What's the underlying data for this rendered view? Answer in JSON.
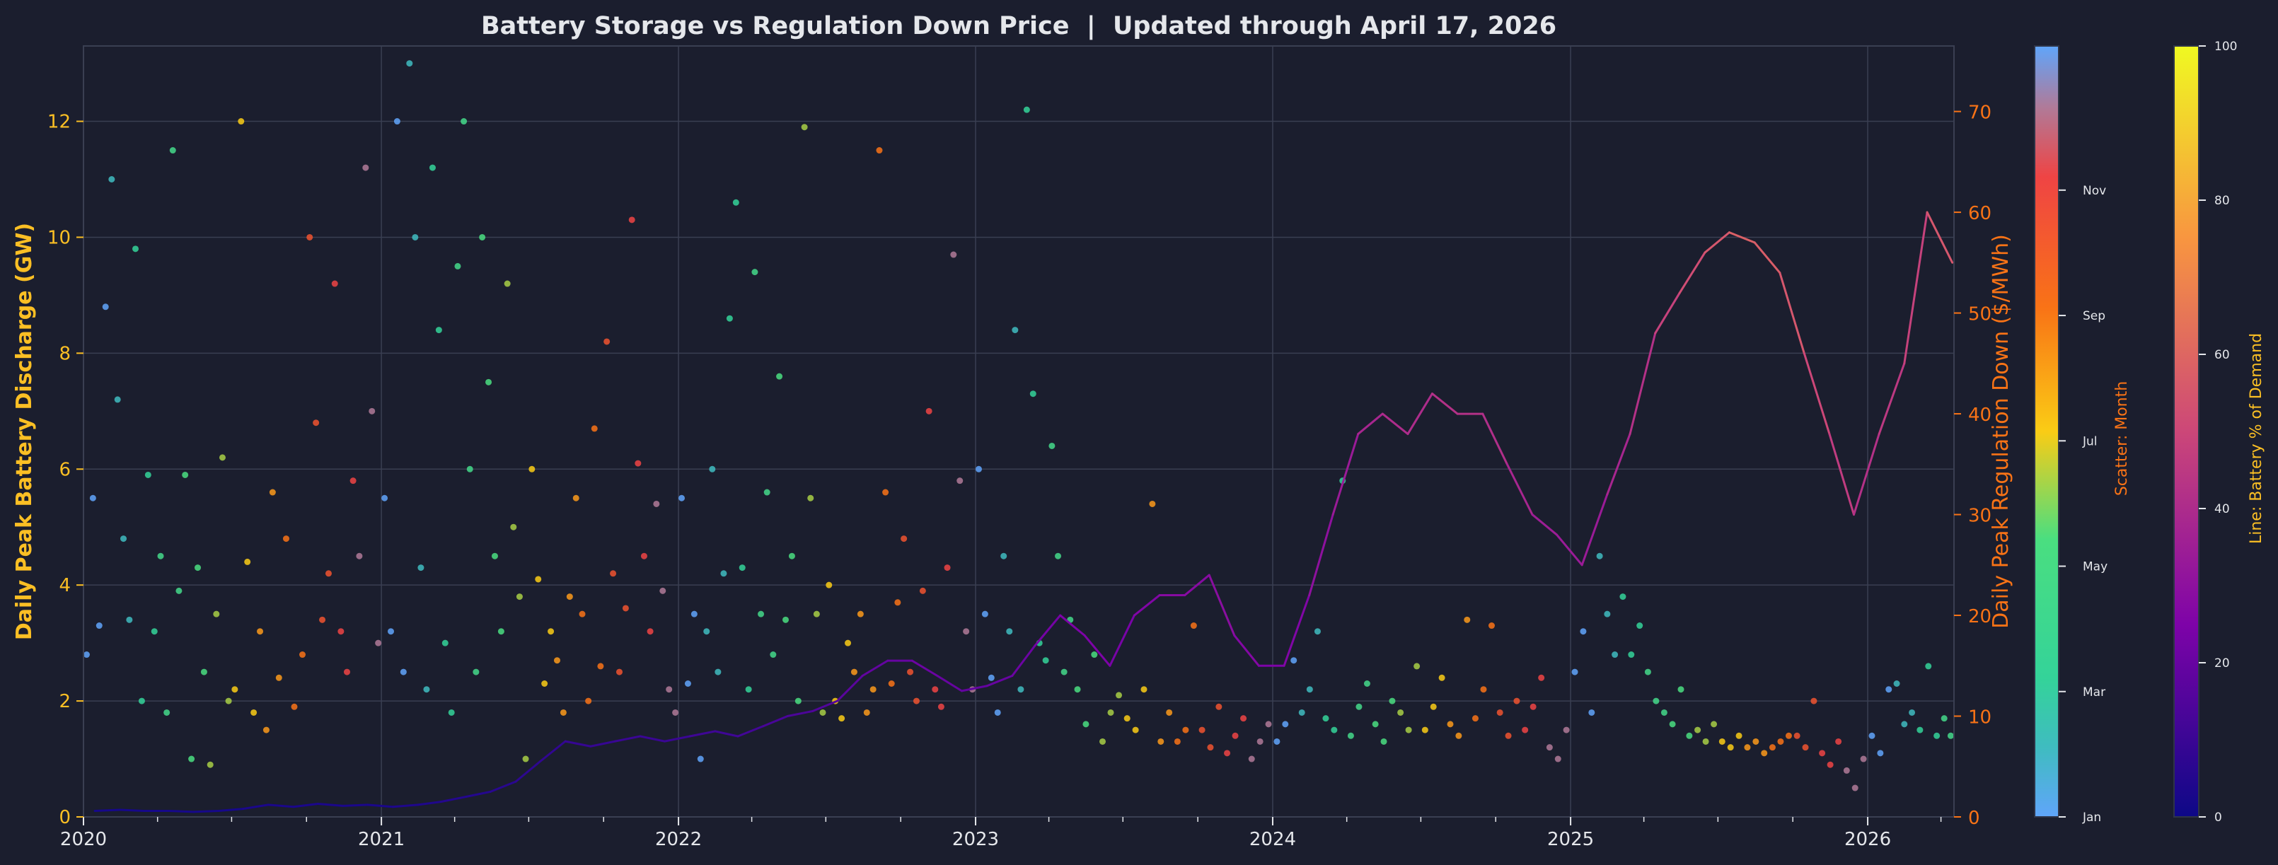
{
  "chart_data": {
    "type": "scatter+line",
    "title": "Battery Storage vs Regulation Down Price  |  Updated through April 17, 2026",
    "xlabel": "",
    "ylabel_left": "Daily Peak Battery Discharge (GW)",
    "ylabel_right": "Daily Peak Regulation Down ($/MWh)",
    "xlim": [
      "2020-01-01",
      "2026-04-17"
    ],
    "ylim_left": [
      0,
      13.3
    ],
    "ylim_right": [
      0,
      76.5
    ],
    "x_ticks": [
      "2020",
      "2021",
      "2022",
      "2023",
      "2024",
      "2025",
      "2026"
    ],
    "y_ticks_left": [
      0,
      2,
      4,
      6,
      8,
      10,
      12
    ],
    "y_ticks_right": [
      0,
      10,
      20,
      30,
      40,
      50,
      60,
      70
    ],
    "grid": true,
    "colors": {
      "background": "#1b1e2e",
      "title": "#e5e7eb",
      "left_axis": "#fbbf24",
      "right_axis": "#f97316",
      "grid": "#3a3f52"
    },
    "scatter_colorbar": {
      "label": "Scatter: Month",
      "ticks": [
        "Jan",
        "Mar",
        "May",
        "Jul",
        "Sep",
        "Nov"
      ],
      "month_colors": [
        "#60a5fa",
        "#3fbcc0",
        "#34d399",
        "#44d98a",
        "#4ade80",
        "#a8cf45",
        "#facc15",
        "#fb9a1a",
        "#f97316",
        "#f0542f",
        "#ef4444",
        "#b07a98"
      ]
    },
    "line_colorbar": {
      "label": "Line: Battery % of Demand",
      "ticks": [
        0,
        20,
        40,
        60,
        80,
        100
      ],
      "colormap": "plasma"
    },
    "scatter": [
      {
        "m": "2020-01",
        "v": [
          2.8,
          5.5,
          3.3,
          8.8
        ]
      },
      {
        "m": "2020-02",
        "v": [
          11.0,
          7.2,
          4.8,
          3.4
        ]
      },
      {
        "m": "2020-03",
        "v": [
          9.8,
          2.0,
          5.9,
          3.2
        ]
      },
      {
        "m": "2020-04",
        "v": [
          4.5,
          1.8,
          11.5,
          3.9
        ]
      },
      {
        "m": "2020-05",
        "v": [
          5.9,
          1.0,
          4.3,
          2.5
        ]
      },
      {
        "m": "2020-06",
        "v": [
          0.9,
          3.5,
          6.2,
          2.0
        ]
      },
      {
        "m": "2020-07",
        "v": [
          2.2,
          12.0,
          4.4,
          1.8
        ]
      },
      {
        "m": "2020-08",
        "v": [
          3.2,
          1.5,
          5.6,
          2.4
        ]
      },
      {
        "m": "2020-09",
        "v": [
          4.8,
          1.9,
          2.8
        ]
      },
      {
        "m": "2020-10",
        "v": [
          10.0,
          6.8,
          3.4,
          4.2
        ]
      },
      {
        "m": "2020-11",
        "v": [
          9.2,
          3.2,
          2.5,
          5.8
        ]
      },
      {
        "m": "2020-12",
        "v": [
          4.5,
          11.2,
          7.0,
          3.0
        ]
      },
      {
        "m": "2021-01",
        "v": [
          5.5,
          3.2,
          12.0,
          2.5
        ]
      },
      {
        "m": "2021-02",
        "v": [
          13.0,
          10.0,
          4.3,
          2.2
        ]
      },
      {
        "m": "2021-03",
        "v": [
          11.2,
          8.4,
          3.0,
          1.8
        ]
      },
      {
        "m": "2021-04",
        "v": [
          9.5,
          12.0,
          6.0,
          2.5
        ]
      },
      {
        "m": "2021-05",
        "v": [
          10.0,
          7.5,
          4.5,
          3.2
        ]
      },
      {
        "m": "2021-06",
        "v": [
          9.2,
          5.0,
          3.8,
          1.0
        ]
      },
      {
        "m": "2021-07",
        "v": [
          6.0,
          4.1,
          2.3,
          3.2
        ]
      },
      {
        "m": "2021-08",
        "v": [
          2.7,
          1.8,
          3.8,
          5.5
        ]
      },
      {
        "m": "2021-09",
        "v": [
          3.5,
          2.0,
          6.7,
          2.6
        ]
      },
      {
        "m": "2021-10",
        "v": [
          8.2,
          4.2,
          2.5,
          3.6
        ]
      },
      {
        "m": "2021-11",
        "v": [
          10.3,
          6.1,
          4.5,
          3.2
        ]
      },
      {
        "m": "2021-12",
        "v": [
          5.4,
          3.9,
          2.2,
          1.8
        ]
      },
      {
        "m": "2022-01",
        "v": [
          5.5,
          2.3,
          3.5,
          1.0
        ]
      },
      {
        "m": "2022-02",
        "v": [
          3.2,
          6.0,
          2.5,
          4.2
        ]
      },
      {
        "m": "2022-03",
        "v": [
          8.6,
          10.6,
          4.3,
          2.2
        ]
      },
      {
        "m": "2022-04",
        "v": [
          9.4,
          3.5,
          5.6,
          2.8
        ]
      },
      {
        "m": "2022-05",
        "v": [
          7.6,
          3.4,
          4.5,
          2.0
        ]
      },
      {
        "m": "2022-06",
        "v": [
          11.9,
          5.5,
          3.5,
          1.8
        ]
      },
      {
        "m": "2022-07",
        "v": [
          4.0,
          2.0,
          1.7,
          3.0
        ]
      },
      {
        "m": "2022-08",
        "v": [
          2.5,
          3.5,
          1.8,
          2.2
        ]
      },
      {
        "m": "2022-09",
        "v": [
          11.5,
          5.6,
          2.3,
          3.7
        ]
      },
      {
        "m": "2022-10",
        "v": [
          4.8,
          2.5,
          2.0,
          3.9
        ]
      },
      {
        "m": "2022-11",
        "v": [
          7.0,
          2.2,
          1.9,
          4.3
        ]
      },
      {
        "m": "2022-12",
        "v": [
          9.7,
          5.8,
          3.2,
          2.2
        ]
      },
      {
        "m": "2023-01",
        "v": [
          6.0,
          3.5,
          2.4,
          1.8
        ]
      },
      {
        "m": "2023-02",
        "v": [
          4.5,
          3.2,
          8.4,
          2.2
        ]
      },
      {
        "m": "2023-03",
        "v": [
          12.2,
          7.3,
          3.0,
          2.7
        ]
      },
      {
        "m": "2023-04",
        "v": [
          6.4,
          4.5,
          2.5,
          3.4
        ]
      },
      {
        "m": "2023-05",
        "v": [
          2.2,
          1.6,
          2.8
        ]
      },
      {
        "m": "2023-06",
        "v": [
          1.3,
          1.8,
          2.1
        ]
      },
      {
        "m": "2023-07",
        "v": [
          1.7,
          1.5,
          2.2
        ]
      },
      {
        "m": "2023-08",
        "v": [
          5.4,
          1.3,
          1.8
        ]
      },
      {
        "m": "2023-09",
        "v": [
          1.3,
          1.5,
          3.3
        ]
      },
      {
        "m": "2023-10",
        "v": [
          1.5,
          1.2,
          1.9
        ]
      },
      {
        "m": "2023-11",
        "v": [
          1.1,
          1.4,
          1.7
        ]
      },
      {
        "m": "2023-12",
        "v": [
          1.0,
          1.3,
          1.6
        ]
      },
      {
        "m": "2024-01",
        "v": [
          1.3,
          1.6,
          2.7
        ]
      },
      {
        "m": "2024-02",
        "v": [
          1.8,
          2.2,
          3.2
        ]
      },
      {
        "m": "2024-03",
        "v": [
          1.7,
          1.5,
          5.8
        ]
      },
      {
        "m": "2024-04",
        "v": [
          1.4,
          1.9,
          2.3
        ]
      },
      {
        "m": "2024-05",
        "v": [
          1.6,
          1.3,
          2.0
        ]
      },
      {
        "m": "2024-06",
        "v": [
          1.8,
          1.5,
          2.6
        ]
      },
      {
        "m": "2024-07",
        "v": [
          1.5,
          1.9,
          2.4
        ]
      },
      {
        "m": "2024-08",
        "v": [
          1.6,
          1.4,
          3.4
        ]
      },
      {
        "m": "2024-09",
        "v": [
          1.7,
          2.2,
          3.3
        ]
      },
      {
        "m": "2024-10",
        "v": [
          1.8,
          1.4,
          2.0
        ]
      },
      {
        "m": "2024-11",
        "v": [
          1.5,
          1.9,
          2.4
        ]
      },
      {
        "m": "2024-12",
        "v": [
          1.2,
          1.0,
          1.5
        ]
      },
      {
        "m": "2025-01",
        "v": [
          2.5,
          3.2,
          1.8
        ]
      },
      {
        "m": "2025-02",
        "v": [
          4.5,
          3.5,
          2.8
        ]
      },
      {
        "m": "2025-03",
        "v": [
          3.8,
          2.8,
          3.3
        ]
      },
      {
        "m": "2025-04",
        "v": [
          2.5,
          2.0,
          1.8
        ]
      },
      {
        "m": "2025-05",
        "v": [
          1.6,
          2.2,
          1.4
        ]
      },
      {
        "m": "2025-06",
        "v": [
          1.5,
          1.3,
          1.6
        ]
      },
      {
        "m": "2025-07",
        "v": [
          1.3,
          1.2,
          1.4
        ]
      },
      {
        "m": "2025-08",
        "v": [
          1.2,
          1.3,
          1.1
        ]
      },
      {
        "m": "2025-09",
        "v": [
          1.2,
          1.3,
          1.4
        ]
      },
      {
        "m": "2025-10",
        "v": [
          1.4,
          1.2,
          2.0
        ]
      },
      {
        "m": "2025-11",
        "v": [
          1.1,
          0.9,
          1.3
        ]
      },
      {
        "m": "2025-12",
        "v": [
          0.8,
          0.5,
          1.0
        ]
      },
      {
        "m": "2026-01",
        "v": [
          1.4,
          1.1,
          2.2
        ]
      },
      {
        "m": "2026-02",
        "v": [
          2.3,
          1.6,
          1.8
        ]
      },
      {
        "m": "2026-03",
        "v": [
          1.5,
          2.6,
          1.4
        ]
      },
      {
        "m": "2026-04",
        "v": [
          1.7,
          1.4
        ]
      }
    ],
    "line": {
      "months": [
        "2020-01",
        "2020-02",
        "2020-03",
        "2020-04",
        "2020-05",
        "2020-06",
        "2020-07",
        "2020-08",
        "2020-09",
        "2020-10",
        "2020-11",
        "2020-12",
        "2021-01",
        "2021-02",
        "2021-03",
        "2021-04",
        "2021-05",
        "2021-06",
        "2021-07",
        "2021-08",
        "2021-09",
        "2021-10",
        "2021-11",
        "2021-12",
        "2022-01",
        "2022-02",
        "2022-03",
        "2022-04",
        "2022-05",
        "2022-06",
        "2022-07",
        "2022-08",
        "2022-09",
        "2022-10",
        "2022-11",
        "2022-12",
        "2023-01",
        "2023-02",
        "2023-03",
        "2023-04",
        "2023-05",
        "2023-06",
        "2023-07",
        "2023-08",
        "2023-09",
        "2023-10",
        "2023-11",
        "2023-12",
        "2024-01",
        "2024-02",
        "2024-03",
        "2024-04",
        "2024-05",
        "2024-06",
        "2024-07",
        "2024-08",
        "2024-09",
        "2024-10",
        "2024-11",
        "2024-12",
        "2025-01",
        "2025-02",
        "2025-03",
        "2025-04",
        "2025-05",
        "2025-06",
        "2025-07",
        "2025-08",
        "2025-09",
        "2025-10",
        "2025-11",
        "2025-12",
        "2026-01",
        "2026-02",
        "2026-03",
        "2026-04"
      ],
      "reg_down_price": [
        0.6,
        0.7,
        0.6,
        0.6,
        0.5,
        0.6,
        0.8,
        1.2,
        1.0,
        1.3,
        1.1,
        1.2,
        1.0,
        1.2,
        1.5,
        2.0,
        2.5,
        3.5,
        5.5,
        7.5,
        7.0,
        7.5,
        8.0,
        7.5,
        8.0,
        8.5,
        8.0,
        9.0,
        10.0,
        10.5,
        11.5,
        14.0,
        15.5,
        15.5,
        14.0,
        12.5,
        13.0,
        14.0,
        17.0,
        20.0,
        18.0,
        15.0,
        20.0,
        22.0,
        22.0,
        24.0,
        18.0,
        15.0,
        15.0,
        22.0,
        30.0,
        38.0,
        40.0,
        38.0,
        42.0,
        40.0,
        40.0,
        35.0,
        30.0,
        28.0,
        25.0,
        32.0,
        38.0,
        48.0,
        52.0,
        56.0,
        58.0,
        57.0,
        54.0,
        46.0,
        38.0,
        30.0,
        38.0,
        45.0,
        60.0,
        55.0
      ],
      "battery_pct": [
        2,
        2,
        2,
        2,
        2,
        2,
        3,
        3,
        3,
        3,
        3,
        3,
        4,
        4,
        5,
        5,
        6,
        7,
        8,
        9,
        9,
        10,
        10,
        10,
        11,
        11,
        12,
        13,
        14,
        15,
        17,
        19,
        20,
        21,
        20,
        19,
        20,
        21,
        23,
        25,
        25,
        24,
        26,
        28,
        28,
        29,
        27,
        25,
        26,
        30,
        34,
        38,
        40,
        40,
        42,
        42,
        41,
        38,
        35,
        34,
        34,
        38,
        42,
        48,
        52,
        55,
        58,
        57,
        55,
        50,
        46,
        42,
        45,
        48,
        55,
        55
      ]
    }
  }
}
